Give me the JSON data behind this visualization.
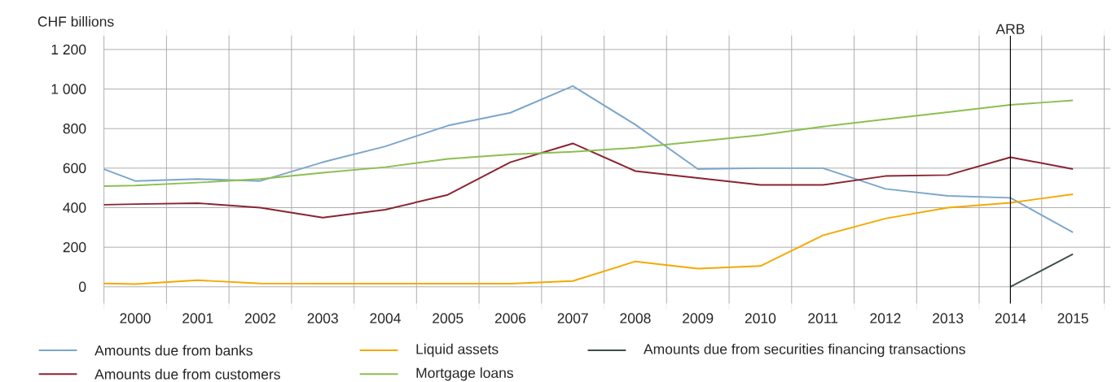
{
  "chart_data": {
    "type": "line",
    "ylabel": "CHF billions",
    "x": [
      1999.5,
      2000,
      2001,
      2002,
      2003,
      2004,
      2005,
      2006,
      2007,
      2008,
      2009,
      2010,
      2011,
      2012,
      2013,
      2014,
      2015
    ],
    "series": [
      {
        "name": "Amounts due from banks",
        "color": "#7ba6cc",
        "values": [
          595,
          535,
          545,
          535,
          630,
          710,
          815,
          880,
          1015,
          820,
          595,
          600,
          600,
          495,
          460,
          450,
          275
        ]
      },
      {
        "name": "Amounts due from customers",
        "color": "#8b2331",
        "values": [
          415,
          418,
          423,
          400,
          350,
          390,
          465,
          630,
          725,
          585,
          550,
          515,
          515,
          560,
          565,
          655,
          595
        ]
      },
      {
        "name": "Liquid assets",
        "color": "#f5a800",
        "values": [
          17,
          14,
          33,
          17,
          16,
          16,
          16,
          16,
          29,
          128,
          92,
          105,
          260,
          345,
          400,
          425,
          468
        ]
      },
      {
        "name": "Mortgage loans",
        "color": "#8cbf4f",
        "values": [
          509,
          512,
          527,
          545,
          577,
          605,
          647,
          669,
          683,
          703,
          735,
          767,
          810,
          847,
          883,
          920,
          943
        ]
      },
      {
        "name": "Amounts due from securities financing transactions",
        "color": "#3d4f4a",
        "x": [
          2014,
          2015
        ],
        "values": [
          0,
          165
        ]
      }
    ],
    "xlim": [
      1999.5,
      2015.6
    ],
    "xticks": [
      {
        "value": 1999.5,
        "label": null
      },
      2000,
      {
        "value": 2000.5,
        "label": null
      },
      2001,
      {
        "value": 2001.5,
        "label": null
      },
      2002,
      {
        "value": 2002.5,
        "label": null
      },
      2003,
      {
        "value": 2003.5,
        "label": null
      },
      2004,
      {
        "value": 2004.5,
        "label": null
      },
      2005,
      {
        "value": 2005.5,
        "label": null
      },
      2006,
      {
        "value": 2006.5,
        "label": null
      },
      2007,
      {
        "value": 2007.5,
        "label": null
      },
      2008,
      {
        "value": 2008.5,
        "label": null
      },
      2009,
      {
        "value": 2009.5,
        "label": null
      },
      2010,
      {
        "value": 2010.5,
        "label": null
      },
      2011,
      {
        "value": 2011.5,
        "label": null
      },
      2012,
      {
        "value": 2012.5,
        "label": null
      },
      2013,
      {
        "value": 2013.5,
        "label": null
      },
      2014,
      {
        "value": 2014.5,
        "label": null
      },
      2015,
      {
        "value": 2015.5,
        "label": null
      }
    ],
    "ylim": [
      -85,
      1270
    ],
    "yticks": [
      0,
      200,
      400,
      600,
      800,
      {
        "value": 1000,
        "label": "1 000"
      },
      {
        "value": 1200,
        "label": "1 200"
      }
    ],
    "ref_lines": [
      {
        "axis": "x",
        "value": 2014,
        "label": "ARB",
        "color": "#000000"
      }
    ],
    "grid": true,
    "legend": "bottom",
    "marker": "none",
    "line_style": "solid"
  }
}
